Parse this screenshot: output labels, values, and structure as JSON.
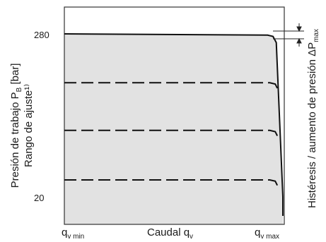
{
  "chart_data": {
    "type": "line",
    "ylabel": {
      "line1_main": "Presión de trabajo P",
      "line1_sub": "B",
      "line1_tail": " [bar]",
      "line2": "Rango de ajuste¹⁾"
    },
    "xlabel": {
      "main": "Caudal q",
      "sub": "v"
    },
    "right_label": {
      "main": "Histéresis / aumento de presión ΔP",
      "sub": "max"
    },
    "x_ticks": [
      {
        "main": "q",
        "sub": "v min"
      },
      {
        "main": "q",
        "sub": "v max"
      }
    ],
    "y_ticks": [
      "280",
      "20"
    ],
    "ylim": [
      20,
      280
    ],
    "xlim": [
      0,
      1
    ],
    "grid": false,
    "series": [
      {
        "style": "solid",
        "x": [
          0,
          0.93,
          0.955,
          0.97,
          1.0
        ],
        "y": [
          280,
          278,
          276,
          266,
          20
        ]
      },
      {
        "style": "dashed",
        "x": [
          0,
          0.94,
          0.965,
          0.975
        ],
        "y": [
          202,
          202,
          200,
          193
        ]
      },
      {
        "style": "dashed",
        "x": [
          0,
          0.94,
          0.965,
          0.975
        ],
        "y": [
          126,
          126,
          124,
          117
        ]
      },
      {
        "style": "dashed",
        "x": [
          0,
          0.94,
          0.965,
          0.975
        ],
        "y": [
          47,
          47,
          45,
          38
        ]
      }
    ],
    "fill_color": "#e2e2e2",
    "line_color": "#111111"
  }
}
